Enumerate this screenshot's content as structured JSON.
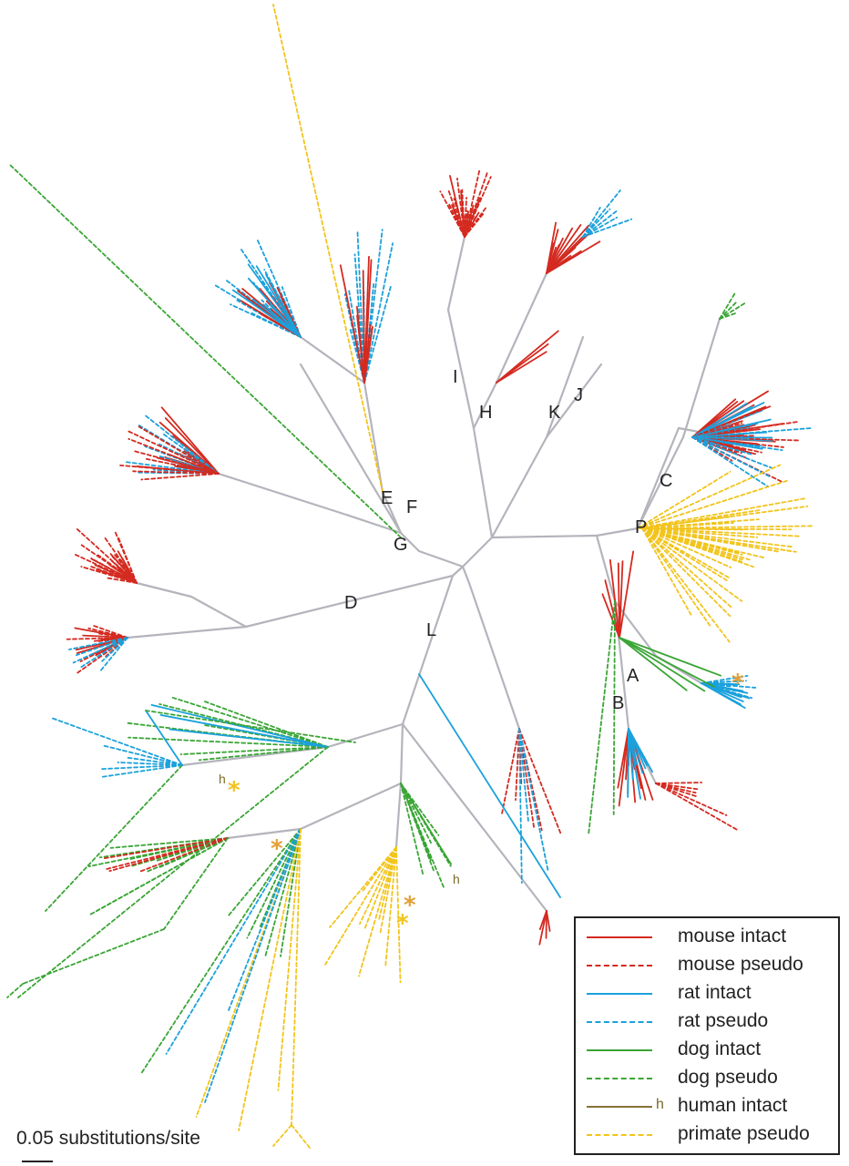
{
  "figure": {
    "clade_labels": [
      "A",
      "B",
      "C",
      "D",
      "E",
      "F",
      "G",
      "H",
      "I",
      "J",
      "K",
      "L",
      "P"
    ],
    "human_marker": "h",
    "star_glyph": "*"
  },
  "legend": {
    "items": [
      {
        "label": "mouse intact",
        "color": "#d42a20",
        "dashed": false
      },
      {
        "label": "mouse pseudo",
        "color": "#d42a20",
        "dashed": true
      },
      {
        "label": "rat intact",
        "color": "#1ba1dc",
        "dashed": false
      },
      {
        "label": "rat pseudo",
        "color": "#1ba1dc",
        "dashed": true
      },
      {
        "label": "dog intact",
        "color": "#3aa535",
        "dashed": false
      },
      {
        "label": "dog pseudo",
        "color": "#3aa535",
        "dashed": true
      },
      {
        "label": "human intact",
        "color": "#857236",
        "dashed": false,
        "marker": "h"
      },
      {
        "label": "primate pseudo",
        "color": "#f2c41c",
        "dashed": true
      }
    ]
  },
  "scale_bar": {
    "label": "0.05 substitutions/site"
  },
  "colors": {
    "backbone": "#b4b4bc",
    "mouse": "#d42a20",
    "rat": "#1ba1dc",
    "dog": "#3aa535",
    "human": "#857236",
    "primate": "#f2c41c",
    "star_orange": "#e3a036",
    "star_yellow": "#f2c41c"
  }
}
